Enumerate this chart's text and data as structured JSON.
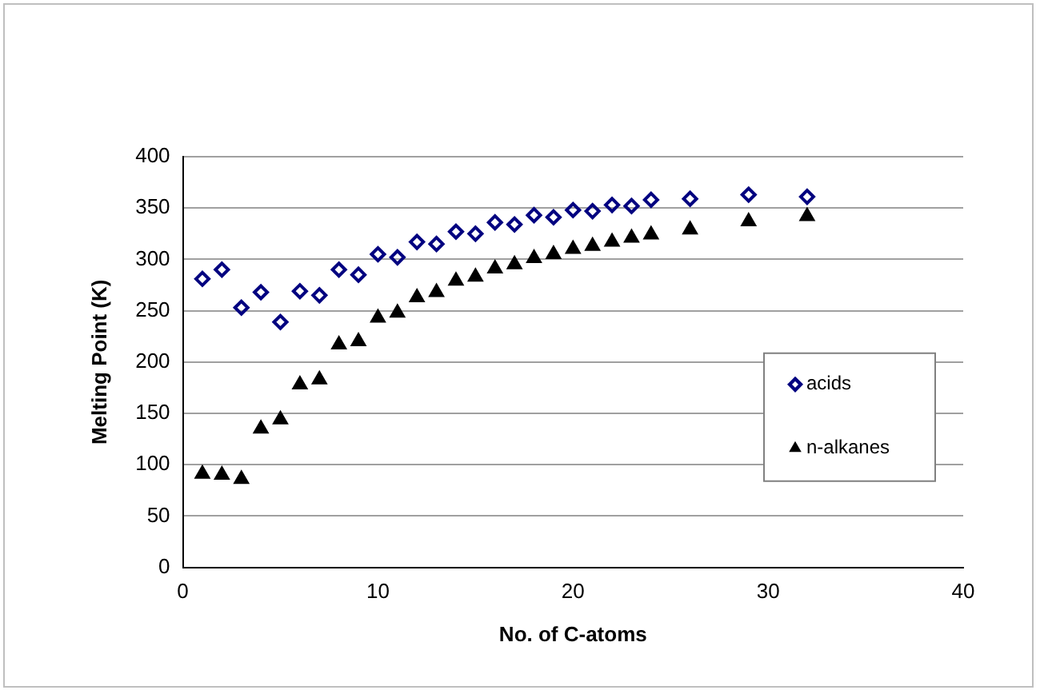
{
  "chart_data": {
    "type": "scatter",
    "xlabel": "No. of C-atoms",
    "ylabel": "Melting Point (K)",
    "xlim": [
      0,
      40
    ],
    "xticks": [
      0,
      10,
      20,
      30,
      40
    ],
    "ylim": [
      0,
      400
    ],
    "yticks": [
      0,
      50,
      100,
      150,
      200,
      250,
      300,
      350,
      400
    ],
    "grid": "y",
    "legend": "right",
    "x": [
      1,
      2,
      3,
      4,
      5,
      6,
      7,
      8,
      9,
      10,
      11,
      12,
      13,
      14,
      15,
      16,
      17,
      18,
      19,
      20,
      21,
      22,
      23,
      24,
      26,
      29,
      32
    ],
    "series": [
      {
        "name": "acids",
        "color": "#000080",
        "marker": "diamond",
        "values": [
          281,
          290,
          253,
          268,
          239,
          269,
          265,
          290,
          285,
          305,
          302,
          317,
          315,
          327,
          325,
          336,
          334,
          343,
          341,
          348,
          347,
          353,
          352,
          358,
          359,
          363,
          361
        ]
      },
      {
        "name": "n-alkanes",
        "color": "#000000",
        "marker": "triangle",
        "values": [
          91,
          90,
          86,
          135,
          144,
          178,
          183,
          217,
          220,
          243,
          248,
          263,
          268,
          279,
          283,
          291,
          295,
          301,
          305,
          310,
          313,
          317,
          321,
          324,
          329,
          337,
          342
        ]
      }
    ]
  }
}
